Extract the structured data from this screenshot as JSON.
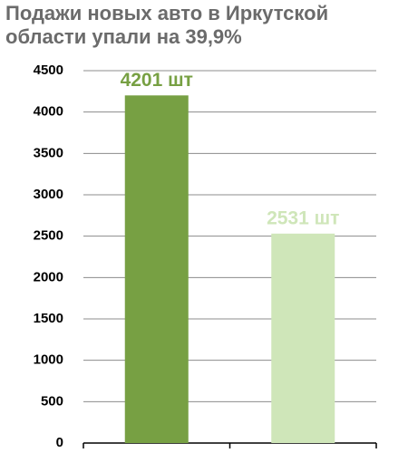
{
  "chart_data": {
    "type": "bar",
    "title": "Подажи новых авто в Иркутской области упали на 39,9%",
    "categories": [
      null,
      null
    ],
    "values": [
      4201,
      2531
    ],
    "value_labels": [
      "4201 шт",
      "2531 шт"
    ],
    "colors": [
      "#77a043",
      "#cfe6b9"
    ],
    "ylim": [
      0,
      4500
    ],
    "yticks": [
      0,
      500,
      1000,
      1500,
      2000,
      2500,
      3000,
      3500,
      4000,
      4500
    ],
    "grid": true
  }
}
